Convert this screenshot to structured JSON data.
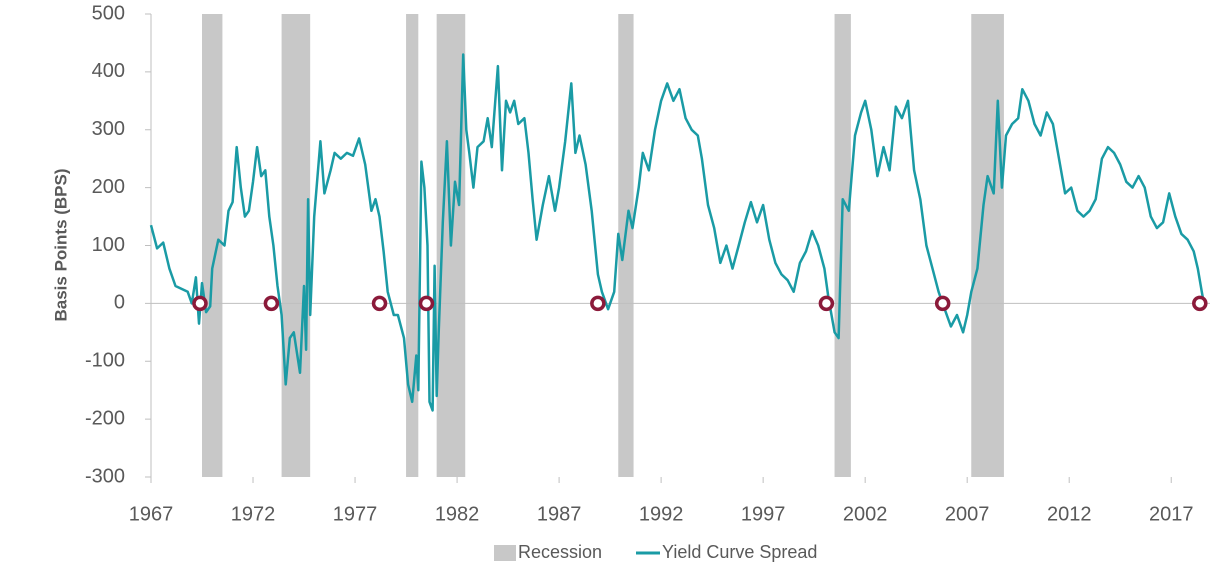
{
  "chart_data": {
    "type": "line",
    "y_axis_label": "Basis Points (BPS)",
    "xlim": [
      1967,
      2018.9
    ],
    "xticks": [
      1967,
      1972,
      1977,
      1982,
      1987,
      1992,
      1997,
      2002,
      2007,
      2012,
      2017
    ],
    "ylim": [
      -300,
      500
    ],
    "yticks": [
      -300,
      -200,
      -100,
      0,
      100,
      200,
      300,
      400,
      500
    ],
    "recessions": {
      "name": "Recession",
      "color": "#c8c8c8",
      "ranges": [
        [
          1969.5,
          1970.5
        ],
        [
          1973.4,
          1974.8
        ],
        [
          1979.5,
          1980.1
        ],
        [
          1981.0,
          1982.4
        ],
        [
          1989.9,
          1990.65
        ],
        [
          2000.5,
          2001.3
        ],
        [
          2007.2,
          2008.8
        ]
      ]
    },
    "inversions": {
      "color": "#8b1a3a",
      "x": [
        1969.4,
        1972.9,
        1978.2,
        1980.5,
        1988.9,
        2000.1,
        2005.8,
        2018.4
      ],
      "values": [
        0,
        0,
        0,
        0,
        0,
        0,
        0,
        0
      ]
    },
    "series": [
      {
        "name": "Yield Curve Spread",
        "color": "#1a9ba5",
        "x": [
          1967.0,
          1967.3,
          1967.6,
          1967.9,
          1968.2,
          1968.5,
          1968.8,
          1969.0,
          1969.2,
          1969.35,
          1969.5,
          1969.7,
          1969.9,
          1970.0,
          1970.3,
          1970.6,
          1970.8,
          1971.0,
          1971.2,
          1971.4,
          1971.6,
          1971.8,
          1972.0,
          1972.2,
          1972.4,
          1972.6,
          1972.8,
          1973.0,
          1973.2,
          1973.4,
          1973.6,
          1973.8,
          1974.0,
          1974.3,
          1974.5,
          1974.6,
          1974.7,
          1974.8,
          1975.0,
          1975.3,
          1975.5,
          1975.8,
          1976.0,
          1976.3,
          1976.6,
          1976.9,
          1977.2,
          1977.5,
          1977.8,
          1978.0,
          1978.2,
          1978.4,
          1978.6,
          1978.9,
          1979.1,
          1979.4,
          1979.6,
          1979.8,
          1980.0,
          1980.1,
          1980.25,
          1980.4,
          1980.55,
          1980.65,
          1980.8,
          1980.9,
          1981.0,
          1981.1,
          1981.3,
          1981.5,
          1981.7,
          1981.9,
          1982.1,
          1982.3,
          1982.45,
          1982.6,
          1982.8,
          1983.0,
          1983.3,
          1983.5,
          1983.7,
          1984.0,
          1984.2,
          1984.4,
          1984.6,
          1984.8,
          1985.0,
          1985.3,
          1985.5,
          1985.7,
          1985.9,
          1986.2,
          1986.5,
          1986.8,
          1987.0,
          1987.3,
          1987.6,
          1987.8,
          1988.0,
          1988.3,
          1988.6,
          1988.9,
          1989.1,
          1989.4,
          1989.7,
          1989.9,
          1990.1,
          1990.4,
          1990.6,
          1990.9,
          1991.1,
          1991.4,
          1991.7,
          1992.0,
          1992.3,
          1992.6,
          1992.9,
          1993.2,
          1993.5,
          1993.8,
          1994.0,
          1994.3,
          1994.6,
          1994.9,
          1995.2,
          1995.5,
          1995.8,
          1996.1,
          1996.4,
          1996.7,
          1997.0,
          1997.3,
          1997.6,
          1997.9,
          1998.2,
          1998.5,
          1998.8,
          1999.1,
          1999.4,
          1999.7,
          2000.0,
          2000.2,
          2000.5,
          2000.7,
          2000.9,
          2001.2,
          2001.5,
          2001.8,
          2002.0,
          2002.3,
          2002.6,
          2002.9,
          2003.2,
          2003.5,
          2003.8,
          2004.1,
          2004.4,
          2004.7,
          2005.0,
          2005.3,
          2005.6,
          2005.9,
          2006.2,
          2006.5,
          2006.8,
          2007.0,
          2007.2,
          2007.5,
          2007.8,
          2008.0,
          2008.3,
          2008.5,
          2008.7,
          2008.9,
          2009.2,
          2009.5,
          2009.7,
          2010.0,
          2010.3,
          2010.6,
          2010.9,
          2011.2,
          2011.5,
          2011.8,
          2012.1,
          2012.4,
          2012.7,
          2013.0,
          2013.3,
          2013.6,
          2013.9,
          2014.2,
          2014.5,
          2014.8,
          2015.1,
          2015.4,
          2015.7,
          2016.0,
          2016.3,
          2016.6,
          2016.9,
          2017.2,
          2017.5,
          2017.8,
          2018.1,
          2018.3,
          2018.5,
          2018.6
        ],
        "values": [
          135,
          95,
          105,
          60,
          30,
          25,
          20,
          0,
          45,
          -35,
          35,
          -15,
          -5,
          60,
          110,
          100,
          160,
          175,
          270,
          200,
          150,
          160,
          210,
          270,
          220,
          230,
          150,
          100,
          30,
          -20,
          -140,
          -60,
          -50,
          -120,
          30,
          -80,
          180,
          -20,
          150,
          280,
          190,
          230,
          260,
          250,
          260,
          255,
          285,
          240,
          160,
          180,
          150,
          90,
          20,
          -20,
          -20,
          -60,
          -140,
          -170,
          -90,
          -150,
          245,
          200,
          100,
          -170,
          -185,
          65,
          -160,
          -50,
          140,
          280,
          100,
          210,
          170,
          430,
          300,
          260,
          200,
          270,
          280,
          320,
          270,
          410,
          230,
          350,
          330,
          350,
          310,
          320,
          260,
          180,
          110,
          170,
          220,
          160,
          200,
          280,
          380,
          260,
          290,
          240,
          160,
          50,
          20,
          -10,
          20,
          120,
          75,
          160,
          130,
          200,
          260,
          230,
          300,
          350,
          380,
          350,
          370,
          320,
          300,
          290,
          250,
          170,
          130,
          70,
          100,
          60,
          100,
          140,
          175,
          140,
          170,
          110,
          70,
          50,
          40,
          20,
          70,
          90,
          125,
          100,
          60,
          10,
          -50,
          -60,
          180,
          160,
          290,
          330,
          350,
          300,
          220,
          270,
          230,
          340,
          320,
          350,
          230,
          180,
          100,
          60,
          20,
          -10,
          -40,
          -20,
          -50,
          -20,
          20,
          60,
          170,
          220,
          190,
          350,
          200,
          290,
          310,
          320,
          370,
          350,
          310,
          290,
          330,
          310,
          250,
          190,
          200,
          160,
          150,
          160,
          180,
          250,
          270,
          260,
          240,
          210,
          200,
          220,
          200,
          150,
          130,
          140,
          190,
          150,
          120,
          110,
          90,
          60,
          20,
          0
        ]
      }
    ]
  }
}
